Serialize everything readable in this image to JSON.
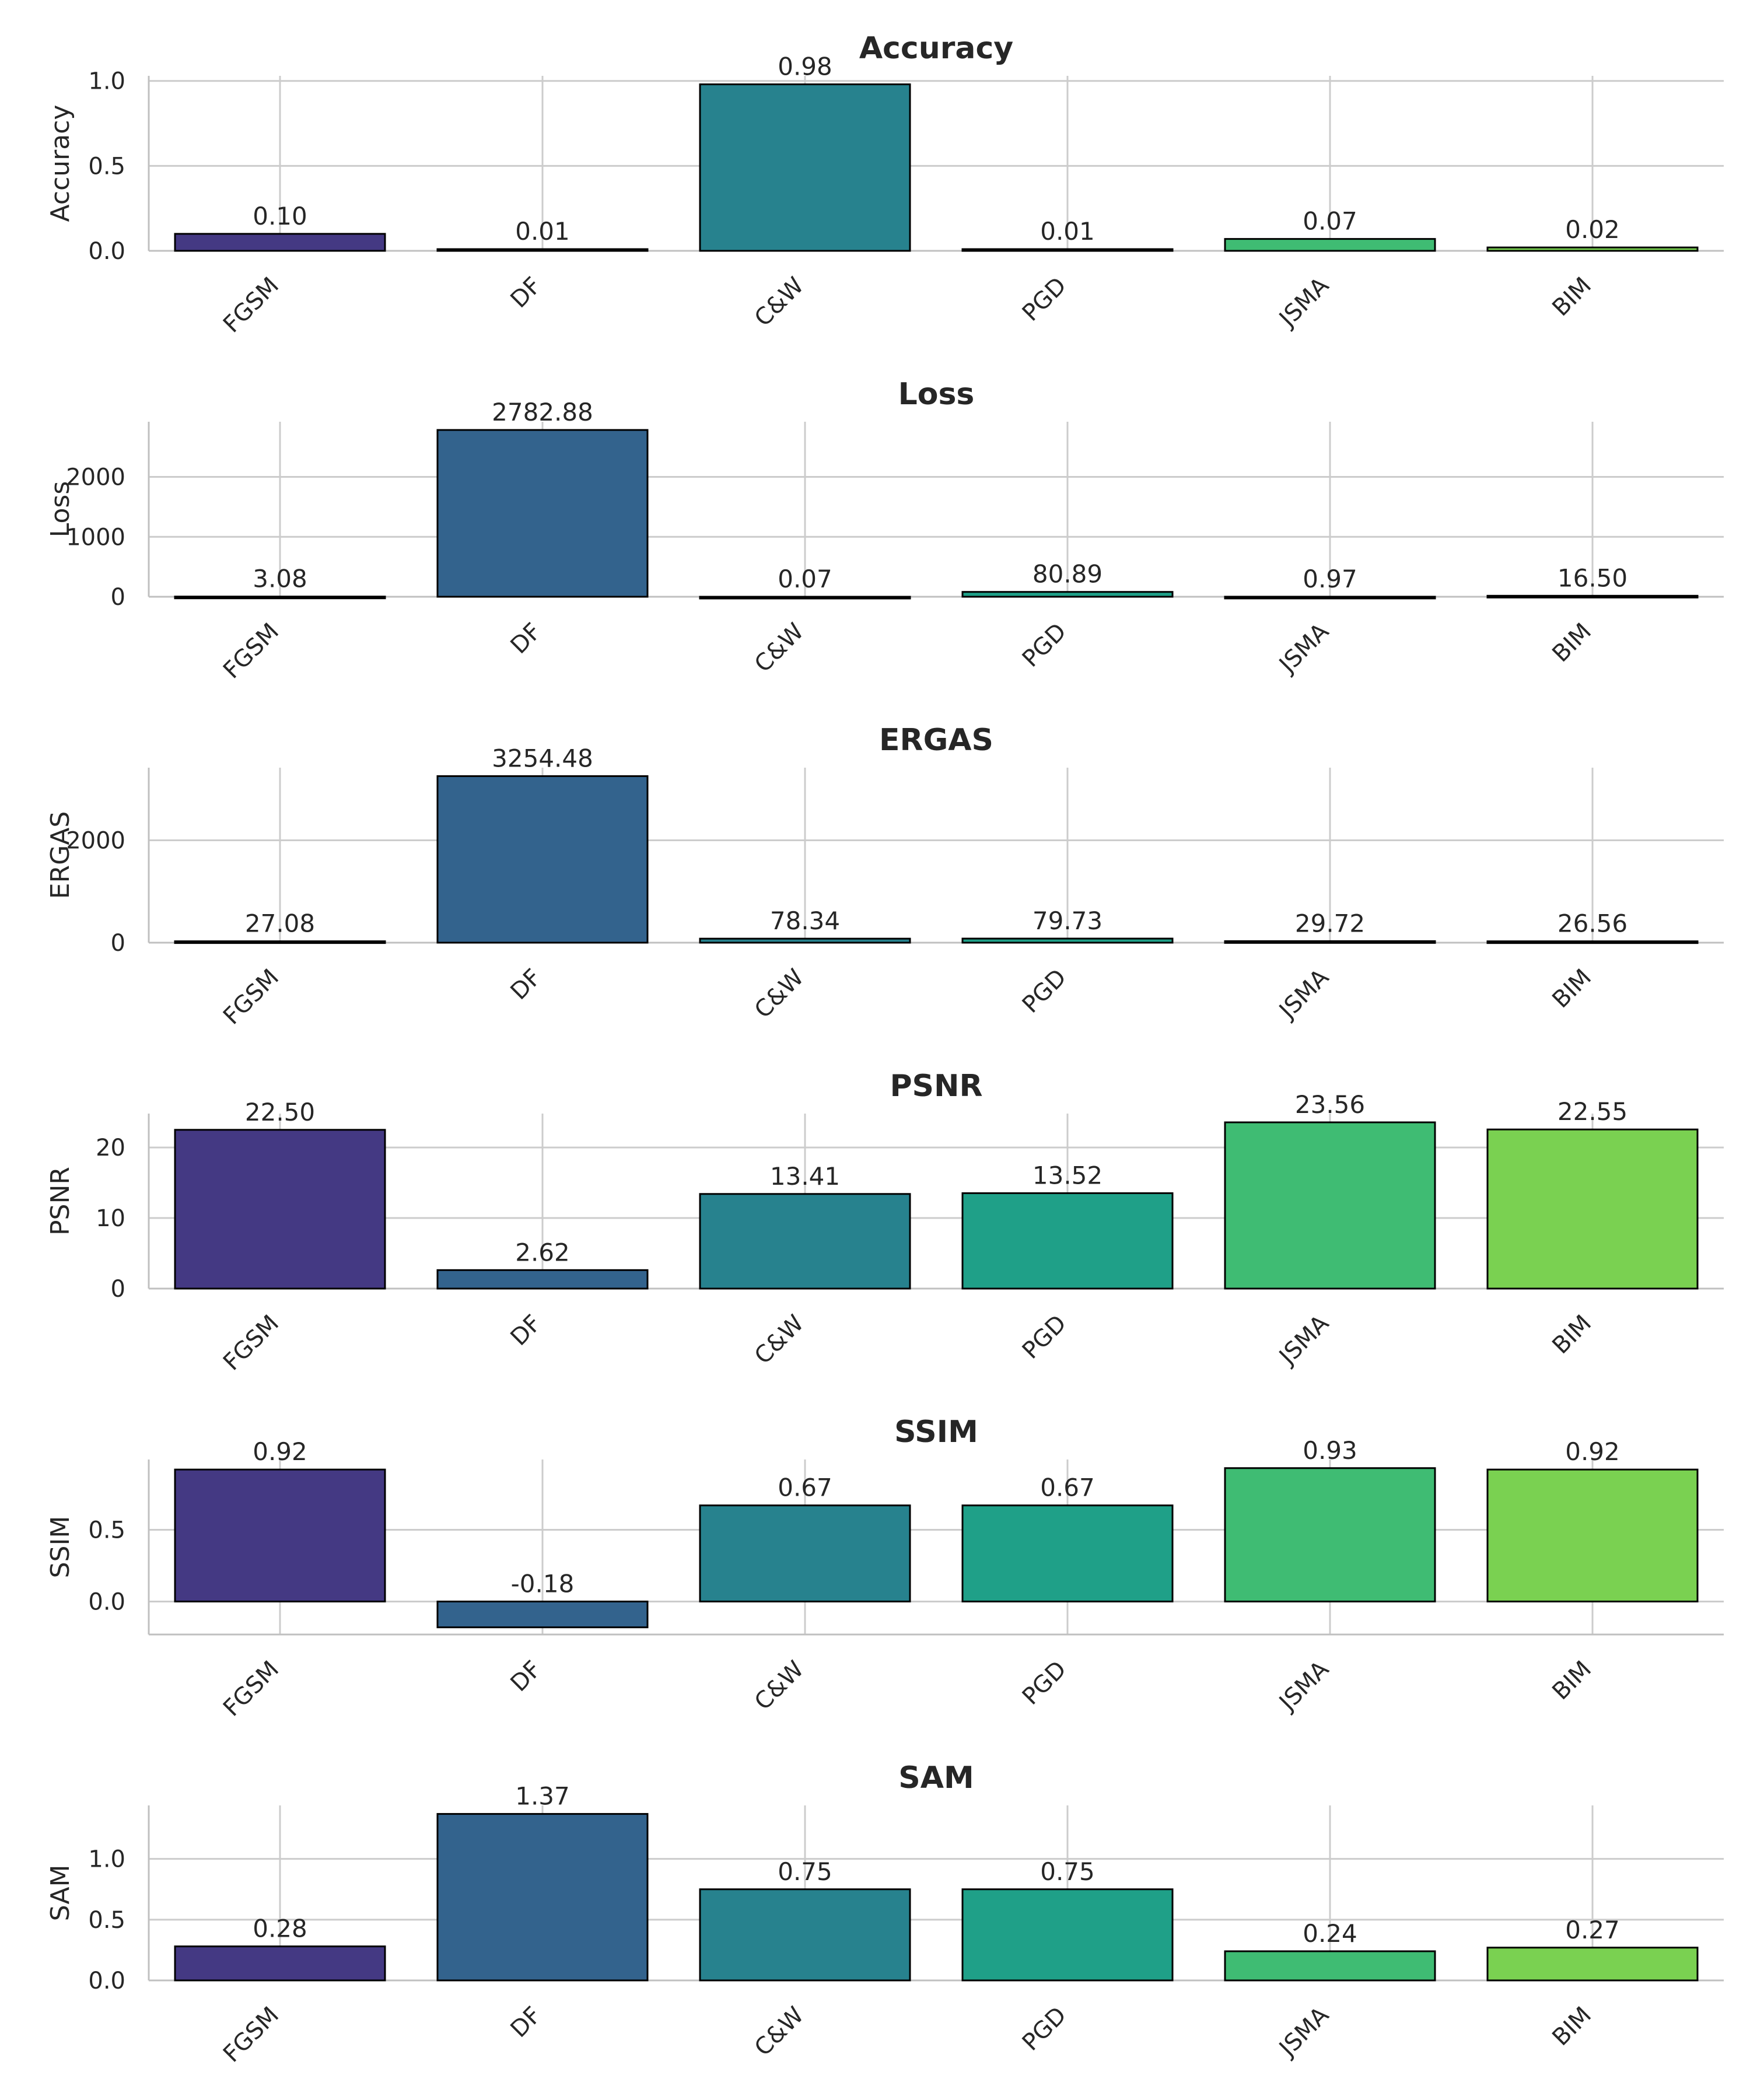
{
  "chart_data": [
    {
      "type": "bar",
      "title": "Accuracy",
      "ylabel": "Accuracy",
      "categories": [
        "FGSM",
        "DF",
        "C&W",
        "PGD",
        "JSMA",
        "BIM"
      ],
      "values": [
        0.1,
        0.01,
        0.98,
        0.01,
        0.07,
        0.02
      ],
      "value_labels": [
        "0.10",
        "0.01",
        "0.98",
        "0.01",
        "0.07",
        "0.02"
      ],
      "ylim": [
        0,
        1.03
      ],
      "yticks": [
        0,
        0.5,
        1.0
      ],
      "ytick_labels": [
        "0.0",
        "0.5",
        "1.0"
      ],
      "grid": true
    },
    {
      "type": "bar",
      "title": "Loss",
      "ylabel": "Loss",
      "categories": [
        "FGSM",
        "DF",
        "C&W",
        "PGD",
        "JSMA",
        "BIM"
      ],
      "values": [
        3.08,
        2782.88,
        0.07,
        80.89,
        0.97,
        16.5
      ],
      "value_labels": [
        "3.08",
        "2782.88",
        "0.07",
        "80.89",
        "0.97",
        "16.50"
      ],
      "ylim": [
        0,
        2920
      ],
      "yticks": [
        0,
        1000,
        2000
      ],
      "ytick_labels": [
        "0",
        "1000",
        "2000"
      ],
      "grid": true
    },
    {
      "type": "bar",
      "title": "ERGAS",
      "ylabel": "ERGAS",
      "categories": [
        "FGSM",
        "DF",
        "C&W",
        "PGD",
        "JSMA",
        "BIM"
      ],
      "values": [
        27.08,
        3254.48,
        78.34,
        79.73,
        29.72,
        26.56
      ],
      "value_labels": [
        "27.08",
        "3254.48",
        "78.34",
        "79.73",
        "29.72",
        "26.56"
      ],
      "ylim": [
        0,
        3420
      ],
      "yticks": [
        0,
        2000
      ],
      "ytick_labels": [
        "0",
        "2000"
      ],
      "grid": true
    },
    {
      "type": "bar",
      "title": "PSNR",
      "ylabel": "PSNR",
      "categories": [
        "FGSM",
        "DF",
        "C&W",
        "PGD",
        "JSMA",
        "BIM"
      ],
      "values": [
        22.5,
        2.62,
        13.41,
        13.52,
        23.56,
        22.55
      ],
      "value_labels": [
        "22.50",
        "2.62",
        "13.41",
        "13.52",
        "23.56",
        "22.55"
      ],
      "ylim": [
        0,
        24.8
      ],
      "yticks": [
        0,
        10,
        20
      ],
      "ytick_labels": [
        "0",
        "10",
        "20"
      ],
      "grid": true
    },
    {
      "type": "bar",
      "title": "SSIM",
      "ylabel": "SSIM",
      "categories": [
        "FGSM",
        "DF",
        "C&W",
        "PGD",
        "JSMA",
        "BIM"
      ],
      "values": [
        0.92,
        -0.18,
        0.67,
        0.67,
        0.93,
        0.92
      ],
      "value_labels": [
        "0.92",
        "-0.18",
        "0.67",
        "0.67",
        "0.93",
        "0.92"
      ],
      "ylim": [
        -0.23,
        0.99
      ],
      "yticks": [
        0,
        0.5
      ],
      "ytick_labels": [
        "0.0",
        "0.5"
      ],
      "grid": true
    },
    {
      "type": "bar",
      "title": "SAM",
      "ylabel": "SAM",
      "categories": [
        "FGSM",
        "DF",
        "C&W",
        "PGD",
        "JSMA",
        "BIM"
      ],
      "values": [
        0.28,
        1.37,
        0.75,
        0.75,
        0.24,
        0.27
      ],
      "value_labels": [
        "0.28",
        "1.37",
        "0.75",
        "0.75",
        "0.24",
        "0.27"
      ],
      "ylim": [
        0,
        1.44
      ],
      "yticks": [
        0,
        0.5,
        1.0
      ],
      "ytick_labels": [
        "0.0",
        "0.5",
        "1.0"
      ],
      "grid": true
    }
  ],
  "colors": {
    "bars": [
      "#443983",
      "#33638d",
      "#27828e",
      "#1fa088",
      "#3fbc73",
      "#7ad151"
    ],
    "edge": "#000000",
    "grid": "#cccccc",
    "text": "#262626"
  }
}
